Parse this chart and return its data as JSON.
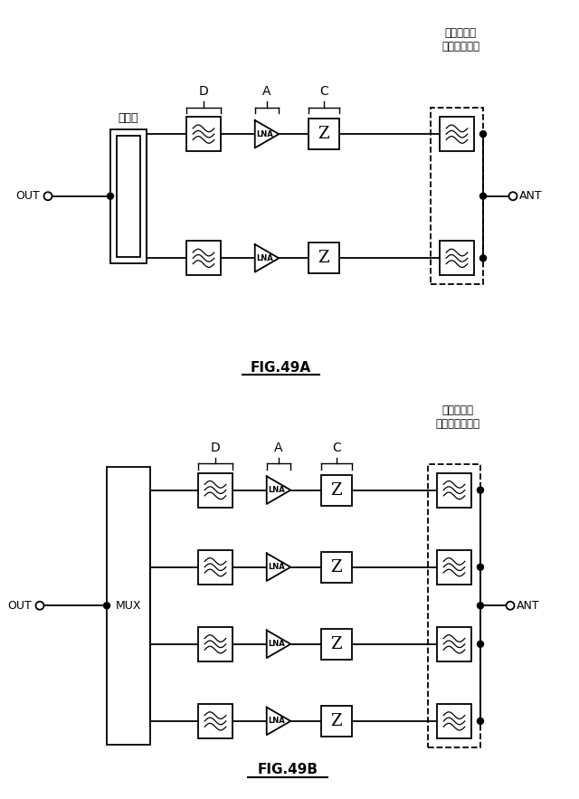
{
  "fig_width": 6.4,
  "fig_height": 8.83,
  "bg_color": "#ffffff",
  "line_color": "#000000",
  "fig49a": {
    "title": "FIG.49A",
    "label_out": "OUT",
    "label_ant": "ANT",
    "label_coupler": "結合器",
    "label_filter": "フィルタ／\nダイプレクサ",
    "labels_dac": [
      "D",
      "A",
      "C"
    ],
    "rows": 2
  },
  "fig49b": {
    "title": "FIG.49B",
    "label_out": "OUT",
    "label_ant": "ANT",
    "label_mux": "MUX",
    "label_filter": "フィルタ／\nマルチプレクサ",
    "labels_dac": [
      "D",
      "A",
      "C"
    ],
    "rows": 4
  }
}
